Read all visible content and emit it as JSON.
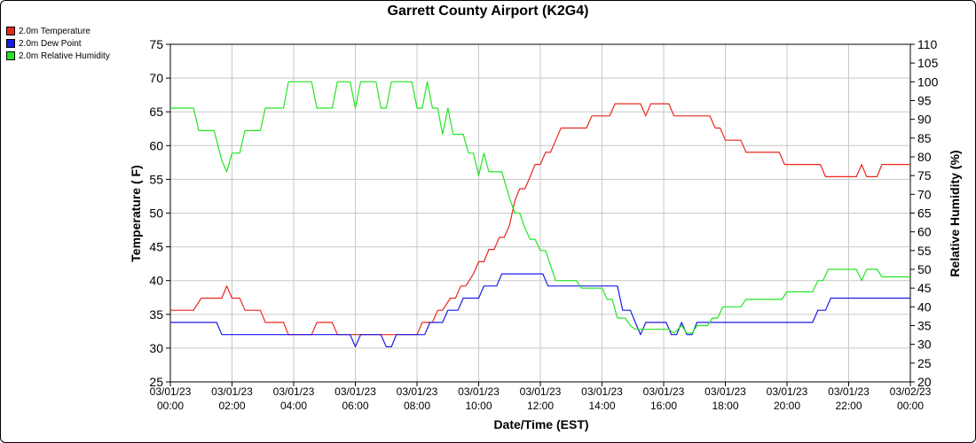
{
  "title": "Garrett County Airport (K2G4)",
  "legend": [
    {
      "label": "2.0m Temperature",
      "color": "#e8281e"
    },
    {
      "label": "2.0m Dew Point",
      "color": "#1a1ae6"
    },
    {
      "label": "2.0m Relative Humidity",
      "color": "#22e622"
    }
  ],
  "chart_data": {
    "type": "line",
    "title": "Garrett County Airport (K2G4)",
    "xlabel": "Date/Time (EST)",
    "ylabel": "Temperature ( F)",
    "y2label": "Relative Humidity (%)",
    "ylim": [
      25,
      75
    ],
    "y2lim": [
      20,
      110
    ],
    "yticks": [
      25,
      30,
      35,
      40,
      45,
      50,
      55,
      60,
      65,
      70,
      75
    ],
    "y2ticks": [
      20,
      25,
      30,
      35,
      40,
      45,
      50,
      55,
      60,
      65,
      70,
      75,
      80,
      85,
      90,
      95,
      100,
      105,
      110
    ],
    "xlim_hours": [
      0,
      24
    ],
    "xticks": [
      {
        "hour": 0,
        "date": "03/01/23",
        "time": "00:00"
      },
      {
        "hour": 2,
        "date": "03/01/23",
        "time": "02:00"
      },
      {
        "hour": 4,
        "date": "03/01/23",
        "time": "04:00"
      },
      {
        "hour": 6,
        "date": "03/01/23",
        "time": "06:00"
      },
      {
        "hour": 8,
        "date": "03/01/23",
        "time": "08:00"
      },
      {
        "hour": 10,
        "date": "03/01/23",
        "time": "10:00"
      },
      {
        "hour": 12,
        "date": "03/01/23",
        "time": "12:00"
      },
      {
        "hour": 14,
        "date": "03/01/23",
        "time": "14:00"
      },
      {
        "hour": 16,
        "date": "03/01/23",
        "time": "16:00"
      },
      {
        "hour": 18,
        "date": "03/01/23",
        "time": "18:00"
      },
      {
        "hour": 20,
        "date": "03/01/23",
        "time": "20:00"
      },
      {
        "hour": 22,
        "date": "03/01/23",
        "time": "22:00"
      },
      {
        "hour": 24,
        "date": "03/02/23",
        "time": "00:00"
      }
    ],
    "grid": true,
    "legend_position": "top-left",
    "series": [
      {
        "name": "2.0m Temperature",
        "color": "#e8281e",
        "axis": "left",
        "points": [
          [
            0,
            35.6
          ],
          [
            0.75,
            35.6
          ],
          [
            1,
            37.4
          ],
          [
            1.67,
            37.4
          ],
          [
            1.83,
            39.2
          ],
          [
            2,
            37.4
          ],
          [
            2.25,
            37.4
          ],
          [
            2.42,
            35.6
          ],
          [
            2.92,
            35.6
          ],
          [
            3.08,
            33.8
          ],
          [
            3.67,
            33.8
          ],
          [
            3.83,
            32
          ],
          [
            4.58,
            32
          ],
          [
            4.75,
            33.8
          ],
          [
            5.25,
            33.8
          ],
          [
            5.42,
            32
          ],
          [
            8,
            32
          ],
          [
            8.17,
            33.8
          ],
          [
            8.5,
            33.8
          ],
          [
            8.67,
            35.6
          ],
          [
            8.83,
            35.6
          ],
          [
            9.08,
            37.4
          ],
          [
            9.25,
            37.4
          ],
          [
            9.42,
            39.2
          ],
          [
            9.58,
            39.2
          ],
          [
            9.83,
            41
          ],
          [
            10,
            42.8
          ],
          [
            10.17,
            42.8
          ],
          [
            10.33,
            44.6
          ],
          [
            10.5,
            44.6
          ],
          [
            10.67,
            46.4
          ],
          [
            10.83,
            46.4
          ],
          [
            11,
            48.2
          ],
          [
            11.17,
            51.8
          ],
          [
            11.33,
            53.6
          ],
          [
            11.5,
            53.6
          ],
          [
            11.67,
            55.4
          ],
          [
            11.83,
            57.2
          ],
          [
            12,
            57.2
          ],
          [
            12.17,
            59
          ],
          [
            12.33,
            59
          ],
          [
            12.5,
            60.8
          ],
          [
            12.67,
            62.6
          ],
          [
            13.17,
            62.6
          ],
          [
            13.5,
            62.6
          ],
          [
            13.67,
            64.4
          ],
          [
            14.25,
            64.4
          ],
          [
            14.42,
            66.2
          ],
          [
            15.25,
            66.2
          ],
          [
            15.42,
            64.4
          ],
          [
            15.58,
            66.2
          ],
          [
            16.17,
            66.2
          ],
          [
            16.33,
            64.4
          ],
          [
            17.5,
            64.4
          ],
          [
            17.67,
            62.6
          ],
          [
            17.83,
            62.6
          ],
          [
            18,
            60.8
          ],
          [
            18.5,
            60.8
          ],
          [
            18.67,
            59
          ],
          [
            19.75,
            59
          ],
          [
            19.92,
            57.2
          ],
          [
            21.08,
            57.2
          ],
          [
            21.25,
            55.4
          ],
          [
            22.25,
            55.4
          ],
          [
            22.42,
            57.2
          ],
          [
            22.58,
            55.4
          ],
          [
            22.92,
            55.4
          ],
          [
            23.08,
            57.2
          ],
          [
            24,
            57.2
          ]
        ]
      },
      {
        "name": "2.0m Dew Point",
        "color": "#1a1ae6",
        "axis": "left",
        "points": [
          [
            0,
            33.8
          ],
          [
            1.5,
            33.8
          ],
          [
            1.67,
            32
          ],
          [
            5.83,
            32
          ],
          [
            6,
            30.2
          ],
          [
            6.17,
            32
          ],
          [
            6.83,
            32
          ],
          [
            7,
            30.2
          ],
          [
            7.17,
            30.2
          ],
          [
            7.33,
            32
          ],
          [
            8.25,
            32
          ],
          [
            8.42,
            33.8
          ],
          [
            8.83,
            33.8
          ],
          [
            9,
            35.6
          ],
          [
            9.33,
            35.6
          ],
          [
            9.5,
            37.4
          ],
          [
            10,
            37.4
          ],
          [
            10.17,
            39.2
          ],
          [
            10.58,
            39.2
          ],
          [
            10.75,
            41
          ],
          [
            12.08,
            41
          ],
          [
            12.25,
            39.2
          ],
          [
            14.5,
            39.2
          ],
          [
            14.67,
            35.6
          ],
          [
            14.92,
            35.6
          ],
          [
            15.08,
            33.8
          ],
          [
            15.25,
            32
          ],
          [
            15.42,
            33.8
          ],
          [
            16.08,
            33.8
          ],
          [
            16.25,
            32
          ],
          [
            16.42,
            32
          ],
          [
            16.58,
            33.8
          ],
          [
            16.75,
            32
          ],
          [
            16.92,
            32
          ],
          [
            17.08,
            33.8
          ],
          [
            20.83,
            33.8
          ],
          [
            21,
            35.6
          ],
          [
            21.25,
            35.6
          ],
          [
            21.42,
            37.4
          ],
          [
            24,
            37.4
          ]
        ]
      },
      {
        "name": "2.0m Relative Humidity",
        "color": "#22e622",
        "axis": "right",
        "points": [
          [
            0,
            93
          ],
          [
            0.75,
            93
          ],
          [
            0.92,
            87
          ],
          [
            1.42,
            87
          ],
          [
            1.67,
            79
          ],
          [
            1.83,
            76
          ],
          [
            2,
            81
          ],
          [
            2.25,
            81
          ],
          [
            2.42,
            87
          ],
          [
            2.92,
            87
          ],
          [
            3.08,
            93
          ],
          [
            3.67,
            93
          ],
          [
            3.83,
            100
          ],
          [
            4.58,
            100
          ],
          [
            4.75,
            93
          ],
          [
            5.25,
            93
          ],
          [
            5.42,
            100
          ],
          [
            5.83,
            100
          ],
          [
            6,
            93
          ],
          [
            6.17,
            100
          ],
          [
            6.67,
            100
          ],
          [
            6.83,
            93
          ],
          [
            7,
            93
          ],
          [
            7.17,
            100
          ],
          [
            7.83,
            100
          ],
          [
            8,
            93
          ],
          [
            8.17,
            93
          ],
          [
            8.33,
            100
          ],
          [
            8.5,
            93
          ],
          [
            8.67,
            93
          ],
          [
            8.83,
            86
          ],
          [
            9,
            93
          ],
          [
            9.17,
            86
          ],
          [
            9.5,
            86
          ],
          [
            9.67,
            81
          ],
          [
            9.83,
            81
          ],
          [
            10,
            75
          ],
          [
            10.17,
            81
          ],
          [
            10.33,
            76
          ],
          [
            10.75,
            76
          ],
          [
            11,
            69
          ],
          [
            11.17,
            65
          ],
          [
            11.33,
            65
          ],
          [
            11.5,
            61
          ],
          [
            11.67,
            58
          ],
          [
            11.83,
            58
          ],
          [
            12,
            55
          ],
          [
            12.17,
            55
          ],
          [
            12.33,
            51
          ],
          [
            12.5,
            47
          ],
          [
            12.67,
            47
          ],
          [
            13.17,
            47
          ],
          [
            13.33,
            45
          ],
          [
            14,
            45
          ],
          [
            14.17,
            42
          ],
          [
            14.33,
            42
          ],
          [
            14.5,
            37
          ],
          [
            14.75,
            37
          ],
          [
            14.92,
            35
          ],
          [
            15.08,
            34
          ],
          [
            15.42,
            34
          ],
          [
            16.17,
            34
          ],
          [
            16.33,
            33
          ],
          [
            16.58,
            35
          ],
          [
            16.75,
            33
          ],
          [
            16.92,
            33
          ],
          [
            17.08,
            35
          ],
          [
            17.42,
            35
          ],
          [
            17.58,
            37
          ],
          [
            17.75,
            37
          ],
          [
            17.92,
            40
          ],
          [
            18.5,
            40
          ],
          [
            18.67,
            42
          ],
          [
            19.83,
            42
          ],
          [
            20,
            44
          ],
          [
            20.83,
            44
          ],
          [
            21,
            47
          ],
          [
            21.17,
            47
          ],
          [
            21.33,
            50
          ],
          [
            22,
            50
          ],
          [
            22.25,
            50
          ],
          [
            22.42,
            47
          ],
          [
            22.58,
            50
          ],
          [
            22.92,
            50
          ],
          [
            23.08,
            48
          ],
          [
            24,
            48
          ]
        ]
      }
    ]
  }
}
